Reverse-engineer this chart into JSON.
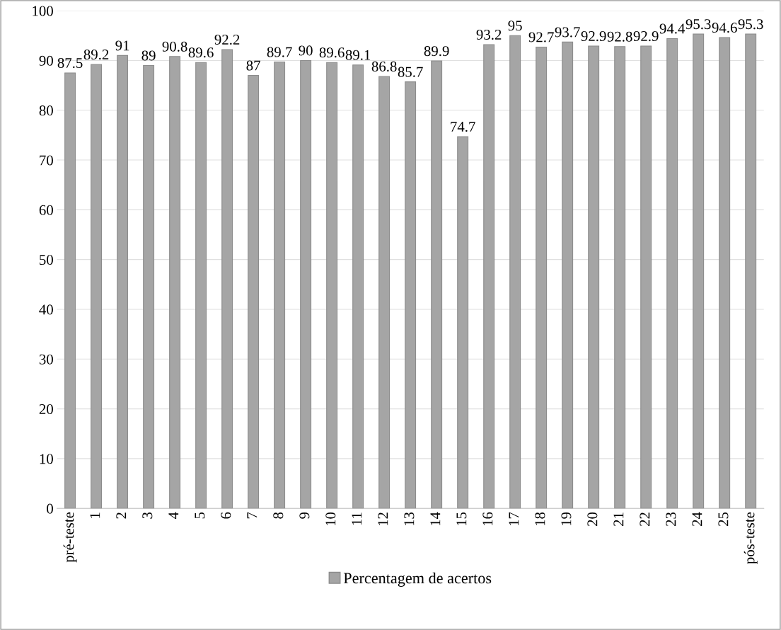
{
  "chart_data": {
    "type": "bar",
    "categories": [
      "pré-teste",
      "1",
      "2",
      "3",
      "4",
      "5",
      "6",
      "7",
      "8",
      "9",
      "10",
      "11",
      "12",
      "13",
      "14",
      "15",
      "16",
      "17",
      "18",
      "19",
      "20",
      "21",
      "22",
      "23",
      "24",
      "25",
      "pós-teste"
    ],
    "series": [
      {
        "name": "Percentagem de acertos",
        "color": "#a5a5a5",
        "values": [
          87.5,
          89.2,
          91,
          89,
          90.8,
          89.6,
          92.2,
          87,
          89.7,
          90,
          89.6,
          89.1,
          86.8,
          85.7,
          89.9,
          74.7,
          93.2,
          95,
          92.7,
          93.7,
          92.9,
          92.8,
          92.9,
          94.4,
          95.3,
          94.6,
          95.3
        ]
      }
    ],
    "ylim": [
      0,
      100
    ],
    "yticks": [
      0,
      10,
      20,
      30,
      40,
      50,
      60,
      70,
      80,
      90,
      100
    ],
    "grid": "y",
    "legend": "bottom",
    "data_labels": true
  }
}
